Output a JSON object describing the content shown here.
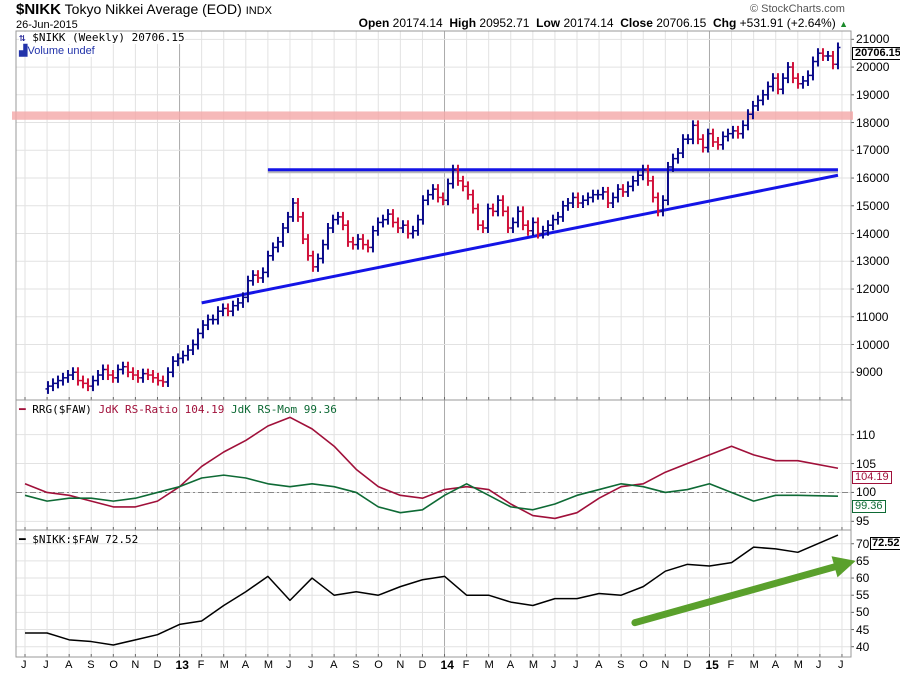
{
  "header": {
    "symbol": "$NIKK",
    "name": "Tokyo Nikkei Average (EOD)",
    "exchange": "INDX",
    "date": "26-Jun-2015",
    "copyright": "© StockCharts.com",
    "open_label": "Open",
    "open": "20174.14",
    "high_label": "High",
    "high": "20952.71",
    "low_label": "Low",
    "low": "20174.14",
    "close_label": "Close",
    "close": "20706.15",
    "chg_label": "Chg",
    "chg": "+531.91 (+2.64%)"
  },
  "colors": {
    "up": "#0a0a8a",
    "down": "#d0103a",
    "trendline": "#1414e6",
    "band": "#f4a8a8",
    "rs_ratio": "#a0103a",
    "rs_mom": "#0e6a35",
    "ratio": "#000000",
    "arrow": "#5aa02c"
  },
  "chart_data": [
    {
      "type": "bar",
      "panel": "price",
      "legend": "$NIKK (Weekly) 20706.15",
      "legend2": "Volume undef",
      "last_value": "20706.15",
      "yticks": [
        9000,
        10000,
        11000,
        12000,
        13000,
        14000,
        15000,
        16000,
        17000,
        18000,
        19000,
        20000,
        21000
      ],
      "ylim": [
        8000,
        21300
      ],
      "first_week": "2012-06-01",
      "last_week": "2015-06-26",
      "weekly_close": [
        8500,
        8600,
        8700,
        8800,
        8900,
        9000,
        8700,
        8600,
        8500,
        8700,
        8900,
        9100,
        8900,
        8800,
        9100,
        9200,
        9000,
        8900,
        8800,
        8950,
        8900,
        8800,
        8700,
        8650,
        9000,
        9400,
        9500,
        9600,
        9800,
        10000,
        10400,
        10700,
        10900,
        10900,
        11200,
        11300,
        11200,
        11400,
        11500,
        11700,
        12300,
        12500,
        12400,
        12600,
        13200,
        13500,
        13700,
        14200,
        14600,
        15100,
        14600,
        13800,
        13200,
        12800,
        13100,
        13600,
        14200,
        14500,
        14600,
        14300,
        13700,
        13600,
        13800,
        13600,
        13500,
        14100,
        14400,
        14500,
        14700,
        14400,
        14200,
        14300,
        14000,
        14100,
        14500,
        15200,
        15400,
        15600,
        15300,
        15200,
        15800,
        16300,
        15900,
        15700,
        15400,
        14900,
        14300,
        14200,
        14900,
        14800,
        15200,
        14800,
        14200,
        14400,
        14800,
        14300,
        14100,
        14400,
        14000,
        14100,
        14300,
        14500,
        14600,
        15000,
        15100,
        15300,
        15100,
        15200,
        15300,
        15400,
        15400,
        15500,
        15100,
        15300,
        15600,
        15500,
        15700,
        15900,
        16100,
        16300,
        15900,
        15300,
        14800,
        15200,
        16400,
        16700,
        16900,
        17400,
        17400,
        17900,
        17400,
        17100,
        17600,
        17300,
        17200,
        17500,
        17600,
        17700,
        17600,
        17900,
        18300,
        18600,
        18800,
        19000,
        19300,
        19600,
        19200,
        19600,
        20000,
        19600,
        19400,
        19500,
        19700,
        20200,
        20500,
        20400,
        20400,
        20100,
        20706.15
      ],
      "annotations": {
        "resistance": 16300,
        "support_from": [
          "2013-02-01",
          11500
        ],
        "support_to": [
          "2015-06-26",
          16100
        ],
        "band": [
          18100,
          18400
        ]
      }
    },
    {
      "type": "line",
      "panel": "rrg",
      "legend_prefix": "RRG($FAW)",
      "series": [
        {
          "name": "JdK RS-Ratio 104.19",
          "last": "104.19",
          "values": [
            101.5,
            100,
            99.5,
            98.5,
            97.5,
            97.5,
            98.5,
            101,
            104.5,
            107,
            109,
            111.5,
            113,
            111,
            108,
            104,
            101,
            99.5,
            99,
            100.5,
            101,
            100.5,
            98,
            96,
            95.5,
            96.5,
            99,
            101,
            101.5,
            103.5,
            105,
            106.5,
            108,
            106.5,
            105.5,
            105.5,
            104.19
          ]
        },
        {
          "name": "JdK RS-Mom 99.36",
          "last": "99.36",
          "values": [
            99.5,
            98.5,
            99,
            99,
            98.5,
            99,
            100,
            101,
            102.5,
            103,
            102.5,
            101.5,
            101,
            101.5,
            101,
            100,
            97.5,
            96.5,
            97,
            99.5,
            101.5,
            99.5,
            97.5,
            97,
            98,
            99.5,
            100.5,
            101.5,
            101,
            100,
            100.5,
            101.5,
            100,
            98.5,
            99.5,
            99.5,
            99.36
          ]
        }
      ],
      "monthly_from": "2012-06",
      "yticks": [
        95,
        100,
        105,
        110
      ],
      "ylim": [
        93.5,
        116
      ],
      "reference": 100
    },
    {
      "type": "line",
      "panel": "ratio",
      "series": [
        {
          "name": "$NIKK:$FAW 72.52",
          "last": "72.52",
          "values": [
            44,
            44,
            42,
            41.5,
            40.5,
            42,
            43.5,
            46.5,
            47.5,
            52,
            56,
            60.5,
            53.5,
            60,
            55,
            56,
            55,
            57.5,
            59.5,
            60.5,
            55,
            55,
            53,
            52,
            54,
            54,
            55.5,
            55,
            57.5,
            62,
            64,
            63.5,
            64.5,
            69,
            68.5,
            67.5,
            72.52
          ]
        }
      ],
      "monthly_from": "2012-06",
      "yticks": [
        40,
        45,
        50,
        55,
        60,
        65,
        70
      ],
      "ylim": [
        37,
        74
      ],
      "annotations": {
        "arrow_from": [
          "2014-09-20",
          47
        ],
        "arrow_to": [
          "2015-07-20",
          65
        ]
      }
    }
  ],
  "xaxis": {
    "labels": [
      "J",
      "J",
      "A",
      "S",
      "O",
      "N",
      "D",
      "13",
      "F",
      "M",
      "A",
      "M",
      "J",
      "J",
      "A",
      "S",
      "O",
      "N",
      "D",
      "14",
      "F",
      "M",
      "A",
      "M",
      "J",
      "J",
      "A",
      "S",
      "O",
      "N",
      "D",
      "15",
      "F",
      "M",
      "A",
      "M",
      "J",
      "J"
    ]
  }
}
